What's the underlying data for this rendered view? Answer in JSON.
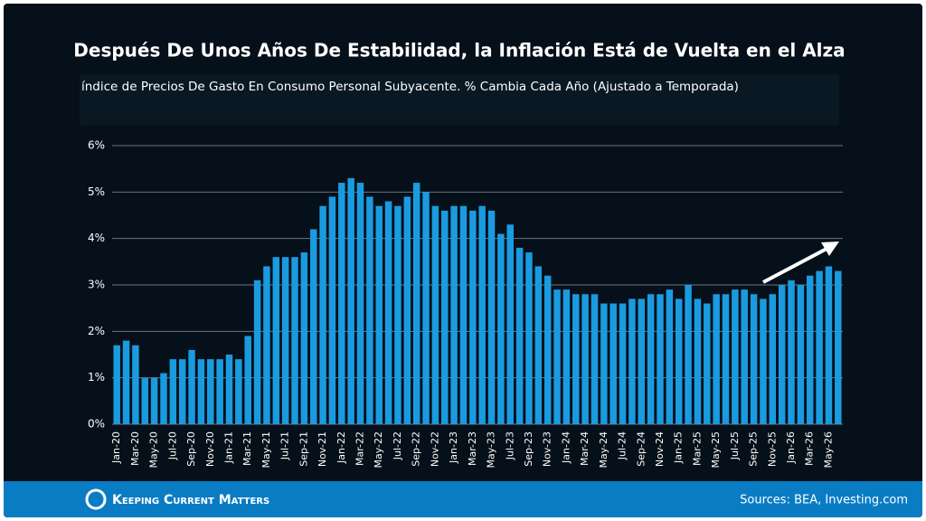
{
  "chart_data": {
    "type": "bar",
    "title": "Después De Unos Años De Estabilidad, la Inflación Está de Vuelta en el Alza",
    "subtitle": "índice de Precios De Gasto En Consumo Personal Subyacente. % Cambia Cada Año (Ajustado a Temporada)",
    "categories": [
      "Jan-20",
      null,
      "Mar-20",
      null,
      "May-20",
      null,
      "Jul-20",
      null,
      "Sep-20",
      null,
      "Nov-20",
      null,
      "Jan-21",
      null,
      "Mar-21",
      null,
      "May-21",
      null,
      "Jul-21",
      null,
      "Sep-21",
      null,
      "Nov-21",
      null,
      "Jan-22",
      null,
      "Mar-22",
      null,
      "May-22",
      null,
      "Jul-22",
      null,
      "Sep-22",
      null,
      "Nov-22",
      null,
      "Jan-23",
      null,
      "Mar-23",
      null,
      "May-23",
      null,
      "Jul-23",
      null,
      "Sep-23",
      null,
      "Nov-23",
      null,
      "Jan-24",
      null,
      "Mar-24",
      null,
      "May-24",
      null,
      "Jul-24",
      null,
      "Sep-24",
      null,
      "Nov-24",
      null,
      "Jan-25",
      null,
      "Mar-25",
      null,
      "May-25",
      null,
      "Jul-25",
      null,
      "Sep-25",
      null,
      "Nov-25",
      null,
      "Jan-26",
      null,
      "Mar-26",
      null,
      "May-26",
      null
    ],
    "values": [
      1.7,
      1.8,
      1.7,
      1.0,
      1.0,
      1.1,
      1.4,
      1.4,
      1.6,
      1.4,
      1.4,
      1.4,
      1.5,
      1.4,
      1.9,
      3.1,
      3.4,
      3.6,
      3.6,
      3.6,
      3.7,
      4.2,
      4.7,
      4.9,
      5.2,
      5.3,
      5.2,
      4.9,
      4.7,
      4.8,
      4.7,
      4.9,
      5.2,
      5.0,
      4.7,
      4.6,
      4.7,
      4.7,
      4.6,
      4.7,
      4.6,
      4.1,
      4.3,
      3.8,
      3.7,
      3.4,
      3.2,
      2.9,
      2.9,
      2.8,
      2.8,
      2.8,
      2.6,
      2.6,
      2.6,
      2.7,
      2.7,
      2.8,
      2.8,
      2.9,
      2.7,
      3.0,
      2.7,
      2.6,
      2.8,
      2.8,
      2.9,
      2.9,
      2.8,
      2.7,
      2.8,
      3.0,
      3.1,
      3.0,
      3.2,
      3.3,
      3.4,
      3.3
    ],
    "color": "#1a9be0",
    "ylim": [
      0,
      6
    ],
    "yticks": [
      {
        "value": 0,
        "label": "0%"
      },
      {
        "value": 1,
        "label": "1%"
      },
      {
        "value": 2,
        "label": "2%"
      },
      {
        "value": 3,
        "label": "3%"
      },
      {
        "value": 4,
        "label": "4%"
      },
      {
        "value": 5,
        "label": "5%"
      },
      {
        "value": 6,
        "label": "6%"
      }
    ],
    "grid": true
  },
  "footer": {
    "logo": "Keeping Current Matters",
    "source": "Sources: BEA, Investing.com"
  }
}
